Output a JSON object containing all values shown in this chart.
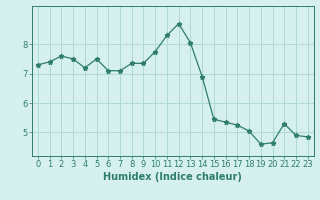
{
  "x": [
    0,
    1,
    2,
    3,
    4,
    5,
    6,
    7,
    8,
    9,
    10,
    11,
    12,
    13,
    14,
    15,
    16,
    17,
    18,
    19,
    20,
    21,
    22,
    23
  ],
  "y": [
    7.3,
    7.4,
    7.6,
    7.5,
    7.2,
    7.5,
    7.1,
    7.1,
    7.35,
    7.35,
    7.75,
    8.3,
    8.7,
    8.05,
    6.9,
    5.45,
    5.35,
    5.25,
    5.05,
    4.6,
    4.65,
    5.3,
    4.9,
    4.85
  ],
  "line_color": "#2e7d6e",
  "marker": "*",
  "marker_size": 3.5,
  "bg_color": "#d6f0ee",
  "grid_color": "#afd8d4",
  "xlabel": "Humidex (Indice chaleur)",
  "xlabel_fontsize": 7,
  "tick_fontsize": 6,
  "ylim": [
    4.2,
    9.3
  ],
  "yticks": [
    5,
    6,
    7,
    8
  ],
  "xticks": [
    0,
    1,
    2,
    3,
    4,
    5,
    6,
    7,
    8,
    9,
    10,
    11,
    12,
    13,
    14,
    15,
    16,
    17,
    18,
    19,
    20,
    21,
    22,
    23
  ]
}
